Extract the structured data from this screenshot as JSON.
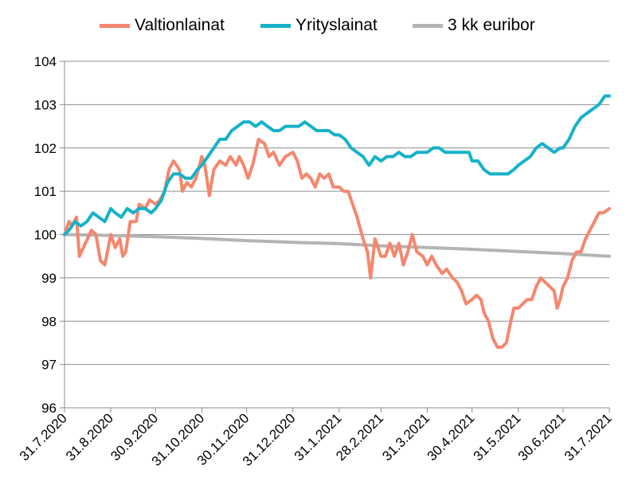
{
  "chart_data": {
    "type": "line",
    "title": "",
    "xlabel": "",
    "ylabel": "",
    "ylim": [
      96,
      104
    ],
    "yticks": [
      96,
      97,
      98,
      99,
      100,
      101,
      102,
      103,
      104
    ],
    "xlim": [
      "2020-07-31",
      "2021-07-31"
    ],
    "xticks": [
      "31.7.2020",
      "31.8.2020",
      "30.9.2020",
      "31.10.2020",
      "30.11.2020",
      "31.12.2020",
      "31.1.2021",
      "28.2.2021",
      "31.3.2021",
      "30.4.2021",
      "31.5.2021",
      "30.6.2021",
      "31.7.2021"
    ],
    "grid": "horizontal",
    "legend_position": "top",
    "series": [
      {
        "name": "Valtionlainat",
        "color": "#f4876e",
        "points": [
          [
            "2020-07-31",
            100.0
          ],
          [
            "2020-08-03",
            100.3
          ],
          [
            "2020-08-05",
            100.2
          ],
          [
            "2020-08-08",
            100.4
          ],
          [
            "2020-08-10",
            99.5
          ],
          [
            "2020-08-14",
            99.8
          ],
          [
            "2020-08-18",
            100.1
          ],
          [
            "2020-08-21",
            100.0
          ],
          [
            "2020-08-24",
            99.4
          ],
          [
            "2020-08-27",
            99.3
          ],
          [
            "2020-08-31",
            100.0
          ],
          [
            "2020-09-03",
            99.7
          ],
          [
            "2020-09-06",
            99.9
          ],
          [
            "2020-09-08",
            99.5
          ],
          [
            "2020-09-10",
            99.6
          ],
          [
            "2020-09-13",
            100.3
          ],
          [
            "2020-09-17",
            100.3
          ],
          [
            "2020-09-19",
            100.7
          ],
          [
            "2020-09-23",
            100.6
          ],
          [
            "2020-09-26",
            100.8
          ],
          [
            "2020-09-30",
            100.7
          ],
          [
            "2020-10-03",
            100.8
          ],
          [
            "2020-10-06",
            101.0
          ],
          [
            "2020-10-09",
            101.5
          ],
          [
            "2020-10-12",
            101.7
          ],
          [
            "2020-10-16",
            101.5
          ],
          [
            "2020-10-18",
            101.0
          ],
          [
            "2020-10-21",
            101.2
          ],
          [
            "2020-10-24",
            101.1
          ],
          [
            "2020-10-27",
            101.3
          ],
          [
            "2020-10-31",
            101.8
          ],
          [
            "2020-11-02",
            101.6
          ],
          [
            "2020-11-05",
            100.9
          ],
          [
            "2020-11-08",
            101.5
          ],
          [
            "2020-11-12",
            101.7
          ],
          [
            "2020-11-16",
            101.6
          ],
          [
            "2020-11-19",
            101.8
          ],
          [
            "2020-11-23",
            101.6
          ],
          [
            "2020-11-25",
            101.8
          ],
          [
            "2020-11-28",
            101.6
          ],
          [
            "2020-12-01",
            101.3
          ],
          [
            "2020-12-04",
            101.6
          ],
          [
            "2020-12-08",
            102.2
          ],
          [
            "2020-12-12",
            102.1
          ],
          [
            "2020-12-15",
            101.8
          ],
          [
            "2020-12-18",
            101.9
          ],
          [
            "2020-12-22",
            101.6
          ],
          [
            "2020-12-26",
            101.8
          ],
          [
            "2020-12-31",
            101.9
          ],
          [
            "2021-01-03",
            101.7
          ],
          [
            "2021-01-06",
            101.3
          ],
          [
            "2021-01-09",
            101.4
          ],
          [
            "2021-01-12",
            101.3
          ],
          [
            "2021-01-15",
            101.1
          ],
          [
            "2021-01-18",
            101.4
          ],
          [
            "2021-01-21",
            101.3
          ],
          [
            "2021-01-24",
            101.4
          ],
          [
            "2021-01-27",
            101.1
          ],
          [
            "2021-01-31",
            101.1
          ],
          [
            "2021-02-03",
            101.0
          ],
          [
            "2021-02-06",
            101.0
          ],
          [
            "2021-02-09",
            100.7
          ],
          [
            "2021-02-12",
            100.4
          ],
          [
            "2021-02-16",
            99.9
          ],
          [
            "2021-02-19",
            99.6
          ],
          [
            "2021-02-21",
            99.0
          ],
          [
            "2021-02-24",
            99.9
          ],
          [
            "2021-02-28",
            99.5
          ],
          [
            "2021-03-03",
            99.5
          ],
          [
            "2021-03-06",
            99.8
          ],
          [
            "2021-03-09",
            99.5
          ],
          [
            "2021-03-12",
            99.8
          ],
          [
            "2021-03-15",
            99.3
          ],
          [
            "2021-03-18",
            99.6
          ],
          [
            "2021-03-21",
            100.0
          ],
          [
            "2021-03-24",
            99.6
          ],
          [
            "2021-03-28",
            99.5
          ],
          [
            "2021-03-31",
            99.3
          ],
          [
            "2021-04-03",
            99.5
          ],
          [
            "2021-04-06",
            99.3
          ],
          [
            "2021-04-10",
            99.1
          ],
          [
            "2021-04-13",
            99.2
          ],
          [
            "2021-04-17",
            99.0
          ],
          [
            "2021-04-20",
            98.9
          ],
          [
            "2021-04-23",
            98.7
          ],
          [
            "2021-04-26",
            98.4
          ],
          [
            "2021-04-30",
            98.5
          ],
          [
            "2021-05-03",
            98.6
          ],
          [
            "2021-05-06",
            98.5
          ],
          [
            "2021-05-08",
            98.2
          ],
          [
            "2021-05-11",
            98.0
          ],
          [
            "2021-05-14",
            97.6
          ],
          [
            "2021-05-17",
            97.4
          ],
          [
            "2021-05-20",
            97.4
          ],
          [
            "2021-05-23",
            97.5
          ],
          [
            "2021-05-26",
            98.0
          ],
          [
            "2021-05-28",
            98.3
          ],
          [
            "2021-05-31",
            98.3
          ],
          [
            "2021-06-03",
            98.4
          ],
          [
            "2021-06-06",
            98.5
          ],
          [
            "2021-06-09",
            98.5
          ],
          [
            "2021-06-12",
            98.8
          ],
          [
            "2021-06-15",
            99.0
          ],
          [
            "2021-06-18",
            98.9
          ],
          [
            "2021-06-21",
            98.8
          ],
          [
            "2021-06-24",
            98.7
          ],
          [
            "2021-06-26",
            98.3
          ],
          [
            "2021-06-28",
            98.5
          ],
          [
            "2021-06-30",
            98.8
          ],
          [
            "2021-07-03",
            99.0
          ],
          [
            "2021-07-06",
            99.4
          ],
          [
            "2021-07-09",
            99.6
          ],
          [
            "2021-07-12",
            99.6
          ],
          [
            "2021-07-15",
            99.9
          ],
          [
            "2021-07-18",
            100.1
          ],
          [
            "2021-07-21",
            100.3
          ],
          [
            "2021-07-24",
            100.5
          ],
          [
            "2021-07-27",
            100.5
          ],
          [
            "2021-07-31",
            100.6
          ]
        ]
      },
      {
        "name": "Yrityslainat",
        "color": "#16b2c9",
        "points": [
          [
            "2020-07-31",
            100.0
          ],
          [
            "2020-08-03",
            100.1
          ],
          [
            "2020-08-07",
            100.3
          ],
          [
            "2020-08-11",
            100.2
          ],
          [
            "2020-08-15",
            100.3
          ],
          [
            "2020-08-19",
            100.5
          ],
          [
            "2020-08-23",
            100.4
          ],
          [
            "2020-08-27",
            100.3
          ],
          [
            "2020-08-31",
            100.6
          ],
          [
            "2020-09-03",
            100.5
          ],
          [
            "2020-09-07",
            100.4
          ],
          [
            "2020-09-11",
            100.6
          ],
          [
            "2020-09-15",
            100.5
          ],
          [
            "2020-09-19",
            100.6
          ],
          [
            "2020-09-23",
            100.6
          ],
          [
            "2020-09-27",
            100.5
          ],
          [
            "2020-09-30",
            100.6
          ],
          [
            "2020-10-04",
            100.8
          ],
          [
            "2020-10-08",
            101.2
          ],
          [
            "2020-10-12",
            101.4
          ],
          [
            "2020-10-16",
            101.4
          ],
          [
            "2020-10-20",
            101.3
          ],
          [
            "2020-10-24",
            101.3
          ],
          [
            "2020-10-28",
            101.5
          ],
          [
            "2020-10-31",
            101.6
          ],
          [
            "2020-11-04",
            101.8
          ],
          [
            "2020-11-08",
            102.0
          ],
          [
            "2020-11-12",
            102.2
          ],
          [
            "2020-11-16",
            102.2
          ],
          [
            "2020-11-20",
            102.4
          ],
          [
            "2020-11-24",
            102.5
          ],
          [
            "2020-11-28",
            102.6
          ],
          [
            "2020-12-02",
            102.6
          ],
          [
            "2020-12-06",
            102.5
          ],
          [
            "2020-12-10",
            102.6
          ],
          [
            "2020-12-14",
            102.5
          ],
          [
            "2020-12-18",
            102.4
          ],
          [
            "2020-12-22",
            102.4
          ],
          [
            "2020-12-26",
            102.5
          ],
          [
            "2020-12-31",
            102.5
          ],
          [
            "2021-01-04",
            102.5
          ],
          [
            "2021-01-08",
            102.6
          ],
          [
            "2021-01-12",
            102.5
          ],
          [
            "2021-01-16",
            102.4
          ],
          [
            "2021-01-20",
            102.4
          ],
          [
            "2021-01-24",
            102.4
          ],
          [
            "2021-01-28",
            102.3
          ],
          [
            "2021-01-31",
            102.3
          ],
          [
            "2021-02-04",
            102.2
          ],
          [
            "2021-02-08",
            102.0
          ],
          [
            "2021-02-12",
            101.9
          ],
          [
            "2021-02-16",
            101.8
          ],
          [
            "2021-02-20",
            101.6
          ],
          [
            "2021-02-24",
            101.8
          ],
          [
            "2021-02-28",
            101.7
          ],
          [
            "2021-03-04",
            101.8
          ],
          [
            "2021-03-08",
            101.8
          ],
          [
            "2021-03-12",
            101.9
          ],
          [
            "2021-03-16",
            101.8
          ],
          [
            "2021-03-20",
            101.8
          ],
          [
            "2021-03-24",
            101.9
          ],
          [
            "2021-03-28",
            101.9
          ],
          [
            "2021-03-31",
            101.9
          ],
          [
            "2021-04-04",
            102.0
          ],
          [
            "2021-04-08",
            102.0
          ],
          [
            "2021-04-12",
            101.9
          ],
          [
            "2021-04-16",
            101.9
          ],
          [
            "2021-04-20",
            101.9
          ],
          [
            "2021-04-24",
            101.9
          ],
          [
            "2021-04-28",
            101.9
          ],
          [
            "2021-04-30",
            101.7
          ],
          [
            "2021-05-04",
            101.7
          ],
          [
            "2021-05-08",
            101.5
          ],
          [
            "2021-05-12",
            101.4
          ],
          [
            "2021-05-16",
            101.4
          ],
          [
            "2021-05-20",
            101.4
          ],
          [
            "2021-05-24",
            101.4
          ],
          [
            "2021-05-28",
            101.5
          ],
          [
            "2021-05-31",
            101.6
          ],
          [
            "2021-06-04",
            101.7
          ],
          [
            "2021-06-08",
            101.8
          ],
          [
            "2021-06-12",
            102.0
          ],
          [
            "2021-06-16",
            102.1
          ],
          [
            "2021-06-20",
            102.0
          ],
          [
            "2021-06-24",
            101.9
          ],
          [
            "2021-06-28",
            102.0
          ],
          [
            "2021-06-30",
            102.0
          ],
          [
            "2021-07-04",
            102.2
          ],
          [
            "2021-07-08",
            102.5
          ],
          [
            "2021-07-12",
            102.7
          ],
          [
            "2021-07-16",
            102.8
          ],
          [
            "2021-07-20",
            102.9
          ],
          [
            "2021-07-24",
            103.0
          ],
          [
            "2021-07-28",
            103.2
          ],
          [
            "2021-07-31",
            103.2
          ]
        ]
      },
      {
        "name": "3 kk euribor",
        "color": "#b4b4b4",
        "points": [
          [
            "2020-07-31",
            100.0
          ],
          [
            "2020-08-31",
            99.98
          ],
          [
            "2020-09-30",
            99.95
          ],
          [
            "2020-10-31",
            99.91
          ],
          [
            "2020-11-30",
            99.86
          ],
          [
            "2020-12-31",
            99.82
          ],
          [
            "2021-01-31",
            99.79
          ],
          [
            "2021-02-28",
            99.74
          ],
          [
            "2021-03-31",
            99.7
          ],
          [
            "2021-04-30",
            99.66
          ],
          [
            "2021-05-31",
            99.61
          ],
          [
            "2021-06-30",
            99.56
          ],
          [
            "2021-07-31",
            99.5
          ]
        ]
      }
    ]
  }
}
